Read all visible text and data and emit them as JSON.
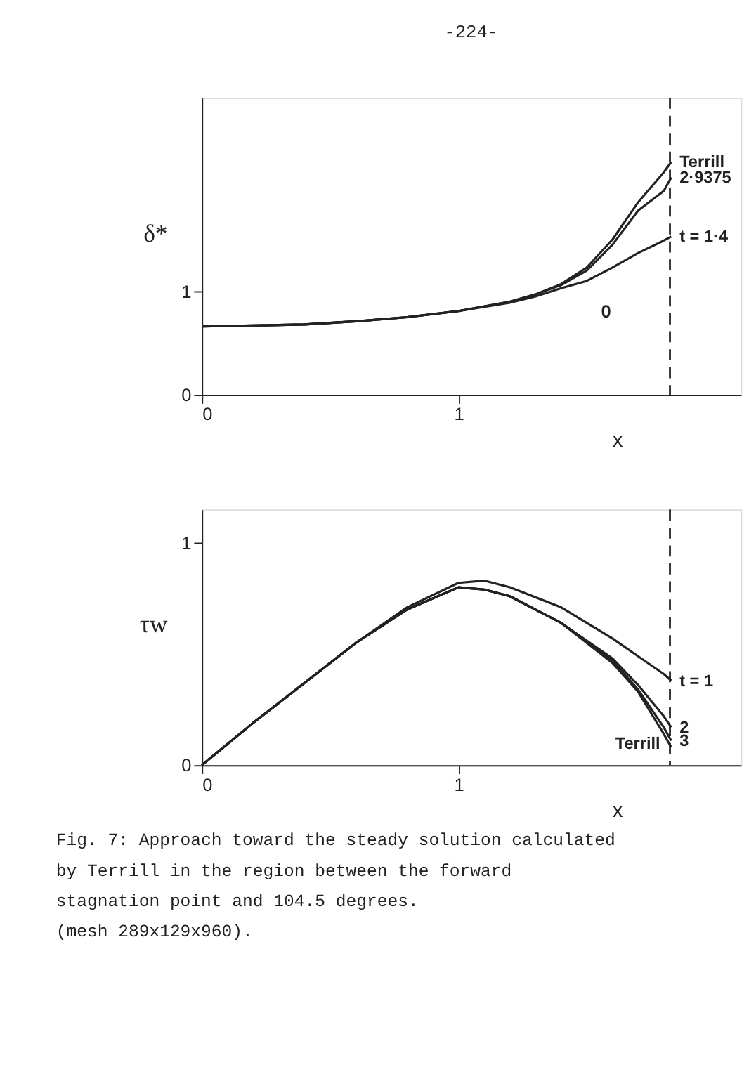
{
  "chart_data": [
    {
      "type": "line",
      "annotations": [
        "-224-",
        "0"
      ],
      "ylabel": "δ*",
      "xlabel": "x",
      "x": [
        0,
        0.2,
        0.4,
        0.6,
        0.8,
        1.0,
        1.2,
        1.3,
        1.4,
        1.5,
        1.6,
        1.7,
        1.8,
        1.829
      ],
      "series": [
        {
          "name": "Terrill",
          "color": "#222222",
          "values": [
            0.66,
            0.67,
            0.68,
            0.71,
            0.75,
            0.81,
            0.9,
            0.97,
            1.07,
            1.23,
            1.5,
            1.86,
            2.15,
            2.25
          ]
        },
        {
          "name": "2·9375",
          "color": "#222222",
          "values": [
            0.66,
            0.67,
            0.68,
            0.71,
            0.75,
            0.81,
            0.9,
            0.97,
            1.06,
            1.2,
            1.45,
            1.78,
            1.97,
            2.1
          ]
        },
        {
          "name": "t = 1·4",
          "color": "#222222",
          "values": [
            0.66,
            0.67,
            0.68,
            0.71,
            0.75,
            0.81,
            0.89,
            0.95,
            1.03,
            1.1,
            1.23,
            1.37,
            1.49,
            1.53
          ]
        }
      ],
      "xlim": [
        0,
        2.1
      ],
      "ylim": [
        0,
        2.87
      ],
      "xticks": [
        0,
        1
      ],
      "yticks": [
        0,
        1
      ],
      "ref_lines": [
        {
          "axis": "x",
          "value": 1.824,
          "label": null,
          "line_style": "dashed",
          "color": "#222222"
        }
      ],
      "grid": false
    },
    {
      "type": "line",
      "annotations": [
        "Fig. 7: Approach toward the steady solution calculated\n        by Terrill in the region between the forward\n        stagnation point and 104.5 degrees.\n        (mesh 289x129x960)."
      ],
      "ylabel": "τw",
      "xlabel": "x",
      "x": [
        0,
        0.2,
        0.4,
        0.6,
        0.8,
        1.0,
        1.1,
        1.2,
        1.4,
        1.6,
        1.7,
        1.8,
        1.829
      ],
      "series": [
        {
          "name": "t = 1",
          "color": "#222222",
          "values": [
            0,
            0.19,
            0.37,
            0.55,
            0.71,
            0.82,
            0.83,
            0.8,
            0.71,
            0.57,
            0.49,
            0.41,
            0.38
          ]
        },
        {
          "name": "2",
          "color": "#222222",
          "values": [
            0,
            0.19,
            0.37,
            0.55,
            0.7,
            0.8,
            0.79,
            0.76,
            0.64,
            0.48,
            0.36,
            0.22,
            0.17
          ]
        },
        {
          "name": "3",
          "color": "#222222",
          "values": [
            0,
            0.19,
            0.37,
            0.55,
            0.7,
            0.8,
            0.79,
            0.76,
            0.64,
            0.47,
            0.34,
            0.17,
            0.11
          ]
        },
        {
          "name": "Terrill",
          "color": "#222222",
          "values": [
            0,
            0.19,
            0.37,
            0.55,
            0.7,
            0.8,
            0.79,
            0.76,
            0.64,
            0.46,
            0.33,
            0.14,
            0.08
          ]
        }
      ],
      "xlim": [
        0,
        2.1
      ],
      "ylim": [
        0,
        1.15
      ],
      "xticks": [
        0,
        1
      ],
      "yticks": [
        0,
        1
      ],
      "ref_lines": [
        {
          "axis": "x",
          "value": 1.824,
          "label": null,
          "line_style": "dashed",
          "color": "#222222"
        }
      ],
      "grid": false
    }
  ]
}
